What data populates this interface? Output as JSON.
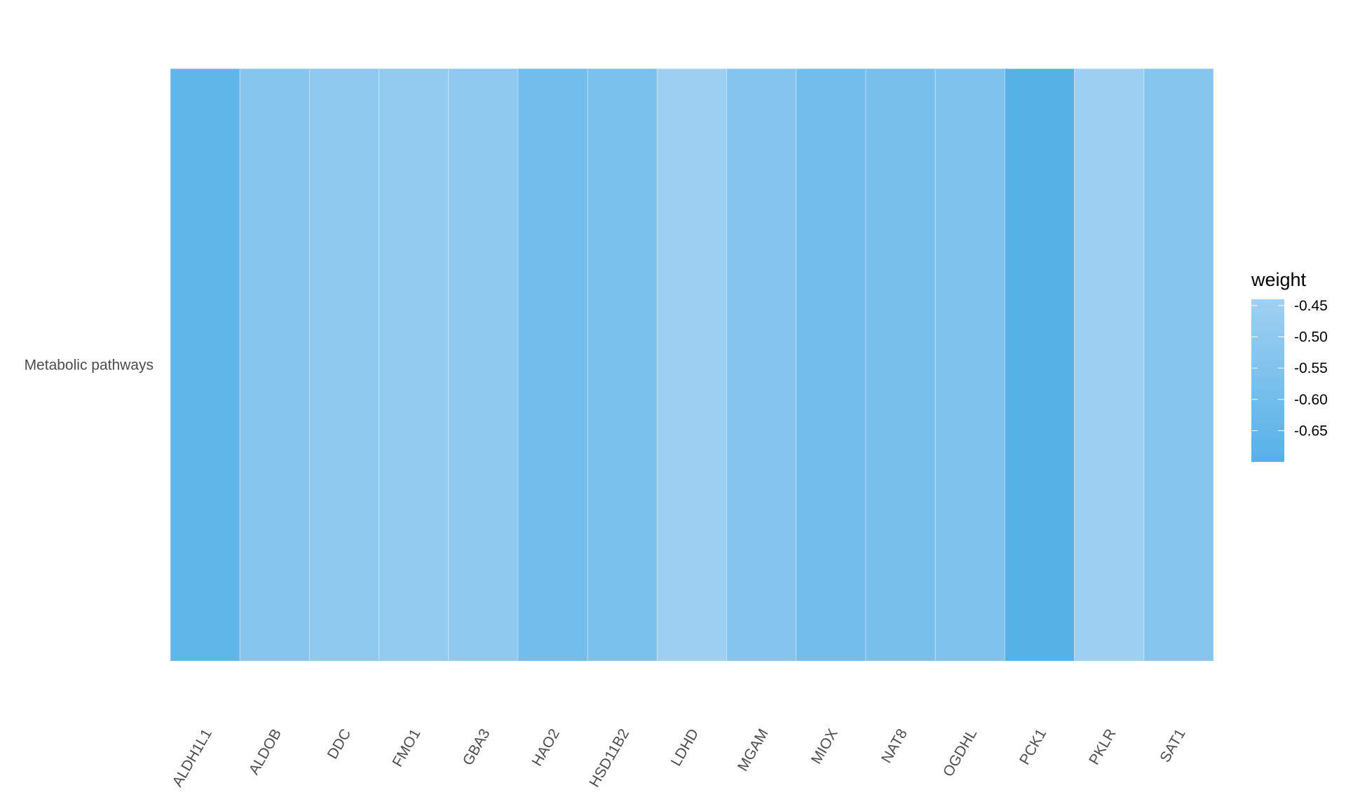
{
  "chart_data": {
    "type": "heatmap",
    "categories": [
      "ALDH1L1",
      "ALDOB",
      "DDC",
      "FMO1",
      "GBA3",
      "HAO2",
      "HSD11B2",
      "LDHD",
      "MGAM",
      "MIOX",
      "NAT8",
      "OGDHL",
      "PCK1",
      "PKLR",
      "SAT1"
    ],
    "rows": [
      "Metabolic pathways"
    ],
    "values": [
      [
        -0.66,
        -0.53,
        -0.5,
        -0.49,
        -0.495,
        -0.6,
        -0.57,
        -0.45,
        -0.54,
        -0.6,
        -0.58,
        -0.56,
        -0.7,
        -0.45,
        -0.53
      ]
    ],
    "legend_title": "weight",
    "colorbar_limits": [
      -0.7,
      -0.44
    ],
    "colorbar_ticks": [
      -0.45,
      {
        "value": -0.5,
        "label": "-0.50"
      },
      -0.55,
      {
        "value": -0.6,
        "label": "-0.60"
      },
      -0.65
    ],
    "low_color": "#56b1e7",
    "high_color": "#a0d0f2"
  }
}
